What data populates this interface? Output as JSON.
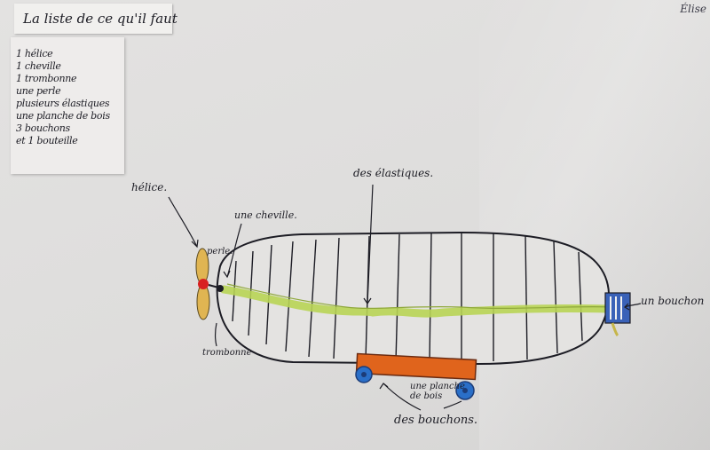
{
  "title": "La liste de ce qu'il faut",
  "signature": "Élise",
  "list_items": [
    "1 hélice",
    "1 cheville",
    "1 trombonne",
    "une perle",
    "plusieurs élastiques",
    "une planche de bois",
    "3 bouchons",
    "et 1 bouteille"
  ],
  "labels": {
    "propeller": "hélice.",
    "peg": "une cheville.",
    "bead": "perle.",
    "paperclip": "trombonne",
    "rubber_bands": "des élastiques.",
    "cork": "un bouchon",
    "board": "une planche de bois",
    "corks": "des bouchons."
  },
  "colors": {
    "ink": "#1c1c24",
    "rubber_band": "#b8d455",
    "board": "#e0641c",
    "wheel": "#2a6fc8",
    "cork_cap": "#3a62b8",
    "propeller": "#e0b552",
    "bead": "#d82020"
  }
}
